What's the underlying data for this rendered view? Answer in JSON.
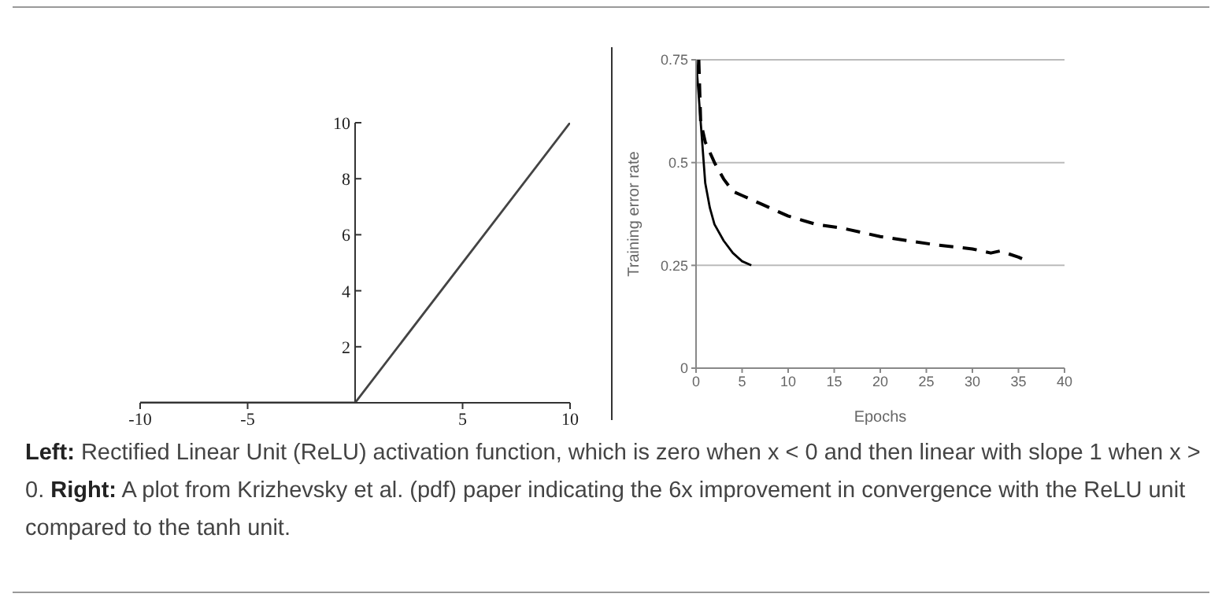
{
  "chart_data": [
    {
      "type": "line",
      "xlim": [
        -10,
        10
      ],
      "ylim": [
        0,
        10
      ],
      "xticks": [
        -10,
        -5,
        5,
        10
      ],
      "yticks": [
        2,
        4,
        6,
        8,
        10
      ],
      "grid": false,
      "series": [
        {
          "x": [
            -10,
            0,
            10
          ],
          "values": [
            0,
            0,
            10
          ],
          "color": "#444444",
          "line_style": "solid"
        }
      ]
    },
    {
      "type": "line",
      "xlabel": "Epochs",
      "ylabel": "Training error rate",
      "xlim": [
        0,
        40
      ],
      "ylim": [
        0,
        0.75
      ],
      "xticks": [
        0,
        5,
        10,
        15,
        20,
        25,
        30,
        35,
        40
      ],
      "yticks": [
        0,
        0.25,
        0.5,
        0.75
      ],
      "grid": "y",
      "series": [
        {
          "x": [
            0,
            0.5,
            1,
            1.5,
            2,
            3,
            4,
            5,
            6
          ],
          "values": [
            0.75,
            0.6,
            0.45,
            0.39,
            0.35,
            0.31,
            0.28,
            0.26,
            0.25
          ],
          "color": "#000000",
          "line_style": "solid"
        },
        {
          "x": [
            0.3,
            0.5,
            1,
            2,
            3,
            4,
            5,
            7,
            10,
            13,
            16,
            20,
            23,
            26,
            30,
            32,
            33,
            35,
            36
          ],
          "values": [
            0.75,
            0.6,
            0.55,
            0.5,
            0.46,
            0.43,
            0.42,
            0.4,
            0.37,
            0.35,
            0.34,
            0.32,
            0.31,
            0.3,
            0.29,
            0.28,
            0.285,
            0.27,
            0.26
          ],
          "color": "#000000",
          "line_style": "dashed"
        }
      ],
      "annotations": [
        "Left: Rectified Linear Unit (ReLU) activation function, which is zero when x < 0 and then linear with slope 1 when x > 0.",
        "Right: A plot from Krizhevsky et al. (pdf) paper indicating the 6x improvement in convergence with the ReLU unit compared to the tanh unit."
      ]
    }
  ]
}
